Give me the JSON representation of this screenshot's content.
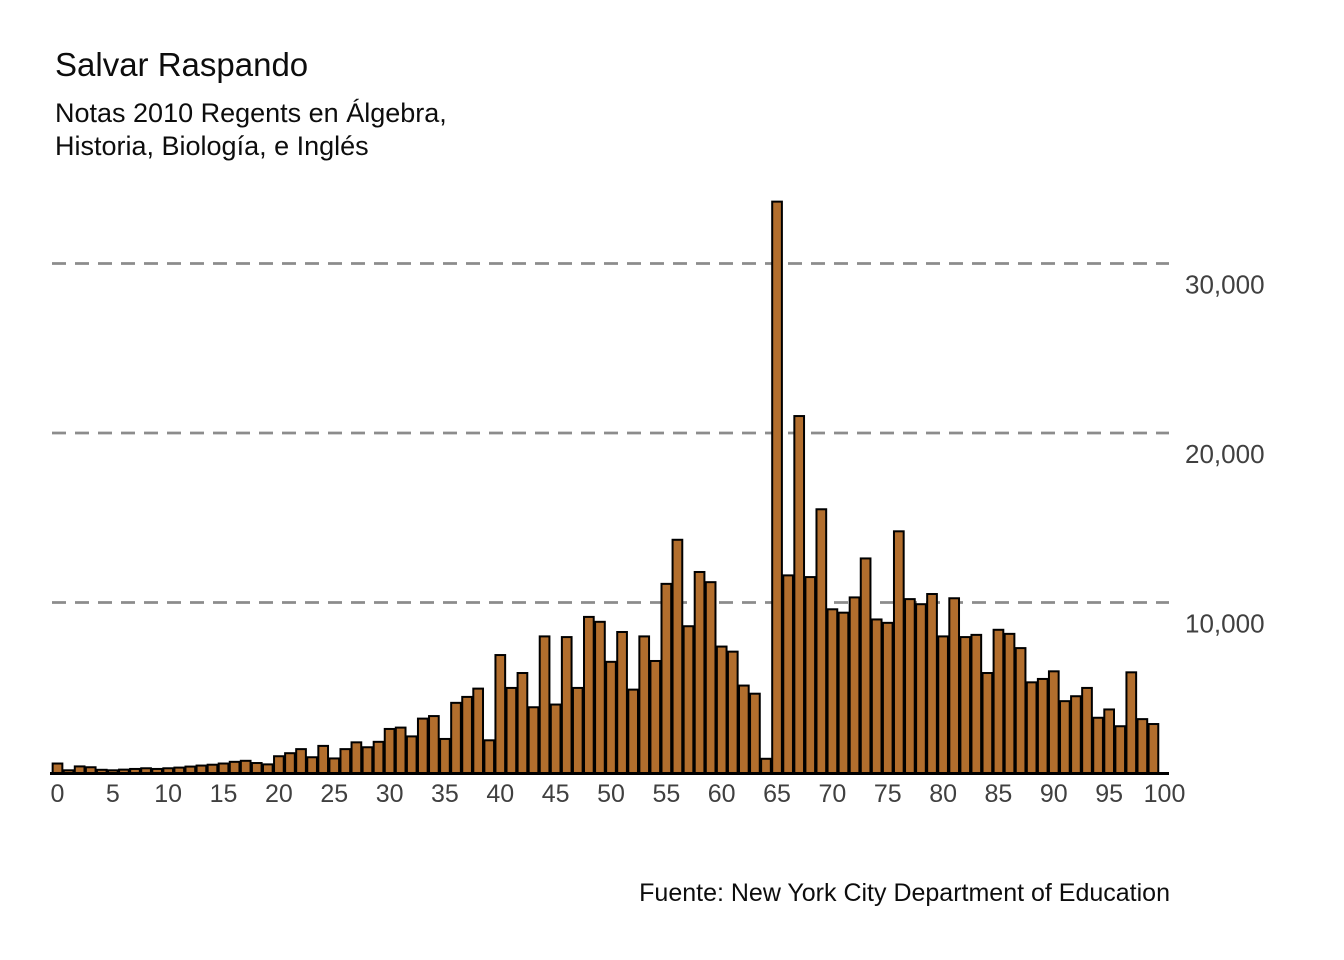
{
  "title": "Salvar Raspando",
  "subtitle_lines": [
    "Notas 2010 Regents en Álgebra,",
    "Historia, Biología, e Inglés"
  ],
  "source": "Fuente: New York City Department of Education",
  "colors": {
    "background": "#ffffff",
    "bar_fill": "#b26e2d",
    "bar_stroke": "#000000",
    "gridline": "#8c8c8c",
    "axis_label": "#404040",
    "baseline": "#000000",
    "text": "#0d0d0d"
  },
  "chart_data": {
    "type": "bar",
    "title": "Salvar Raspando",
    "subtitle": "Notas 2010 Regents en Álgebra, Historia, Biología, e Inglés",
    "source": "Fuente: New York City Department of Education",
    "xlabel": "",
    "ylabel": "",
    "x_note": "exam score; one bar per integer score, score = array index",
    "x_min": 0,
    "x_step": 1,
    "xlim": [
      0,
      100
    ],
    "ylim": [
      0,
      34000
    ],
    "grid": "horizontal dashed at 10000/20000/30000, labels on right",
    "legend": "none",
    "x_ticks": [
      0,
      5,
      10,
      15,
      20,
      25,
      30,
      35,
      40,
      45,
      50,
      55,
      60,
      65,
      70,
      75,
      80,
      85,
      90,
      95,
      100
    ],
    "y_ticks": [
      {
        "value": 10000,
        "label": "10,000"
      },
      {
        "value": 20000,
        "label": "20,000"
      },
      {
        "value": 30000,
        "label": "30,000"
      }
    ],
    "values": [
      500,
      100,
      330,
      280,
      130,
      100,
      140,
      180,
      220,
      180,
      220,
      260,
      320,
      380,
      430,
      500,
      600,
      660,
      530,
      450,
      930,
      1110,
      1350,
      870,
      1540,
      800,
      1350,
      1750,
      1460,
      1780,
      2540,
      2620,
      2100,
      3150,
      3300,
      1950,
      4080,
      4430,
      4920,
      1870,
      6900,
      4960,
      5840,
      3820,
      8000,
      3980,
      7960,
      4960,
      9150,
      8860,
      6500,
      8260,
      4860,
      8000,
      6550,
      11100,
      13700,
      8600,
      11800,
      11200,
      7400,
      7100,
      5100,
      4620,
      780,
      33650,
      11600,
      21000,
      11500,
      15500,
      9600,
      9400,
      10300,
      12600,
      9000,
      8800,
      14200,
      10200,
      9900,
      10500,
      8000,
      10250,
      7960,
      8090,
      5840,
      8390,
      8150,
      7310,
      5290,
      5490,
      5940,
      4180,
      4470,
      4960,
      3200,
      3690,
      2700,
      5880,
      3120,
      2830
    ]
  }
}
